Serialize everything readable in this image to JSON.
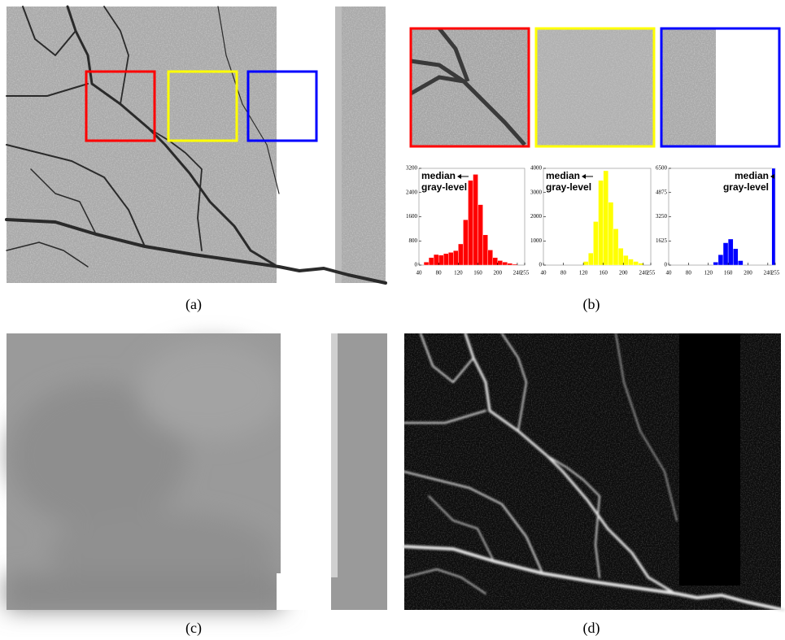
{
  "captions": [
    "(a)",
    "(b)",
    "(c)",
    "(d)"
  ],
  "chart_data": [
    {
      "type": "histogram",
      "color": "#ff0000",
      "bins": [
        50,
        60,
        70,
        80,
        90,
        100,
        110,
        120,
        130,
        140,
        150,
        160,
        170,
        180,
        190,
        200,
        210,
        220,
        230,
        240
      ],
      "counts": [
        100,
        250,
        350,
        330,
        380,
        420,
        480,
        700,
        1500,
        2800,
        3000,
        2000,
        1000,
        500,
        250,
        150,
        100,
        60,
        30
      ],
      "xlim": [
        40,
        255
      ],
      "xticks": [
        40,
        80,
        120,
        160,
        200,
        240,
        255
      ],
      "ylim": [
        0,
        3200
      ],
      "yticks": [
        0,
        800,
        1600,
        2400,
        3200
      ],
      "annotation": [
        "median",
        "gray-level"
      ]
    },
    {
      "type": "histogram",
      "color": "#ffff00",
      "bins": [
        120,
        130,
        140,
        150,
        160,
        170,
        180,
        190,
        200,
        210,
        220,
        230,
        240
      ],
      "counts": [
        150,
        500,
        1800,
        3500,
        3900,
        2600,
        1500,
        700,
        400,
        250,
        150,
        80
      ],
      "xlim": [
        40,
        255
      ],
      "xticks": [
        40,
        80,
        120,
        160,
        200,
        240,
        255
      ],
      "ylim": [
        0,
        4000
      ],
      "yticks": [
        0,
        1000,
        2000,
        3000,
        4000
      ],
      "annotation": [
        "median",
        "gray-level"
      ]
    },
    {
      "type": "histogram",
      "color": "#0000ff",
      "bins": [
        130,
        140,
        150,
        160,
        170,
        180,
        190,
        248,
        255
      ],
      "counts": [
        200,
        700,
        1500,
        1750,
        1100,
        300,
        0,
        6500
      ],
      "xlim": [
        40,
        255
      ],
      "xticks": [
        40,
        80,
        120,
        160,
        200,
        240,
        255
      ],
      "ylim": [
        0,
        6500
      ],
      "yticks": [
        0,
        1625,
        3250,
        4875,
        6500
      ],
      "annotation": [
        "median",
        "gray-level"
      ]
    }
  ]
}
